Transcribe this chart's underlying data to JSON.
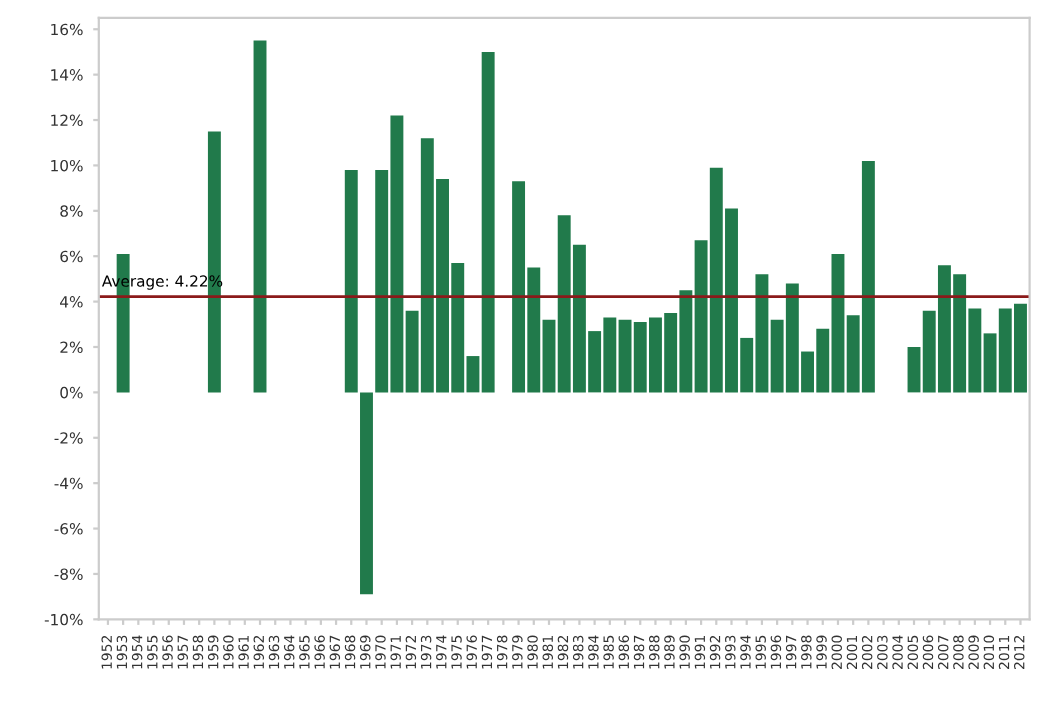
{
  "chart_data": {
    "type": "bar",
    "categories": [
      "1952",
      "1953",
      "1954",
      "1955",
      "1956",
      "1957",
      "1958",
      "1959",
      "1960",
      "1961",
      "1962",
      "1963",
      "1964",
      "1965",
      "1966",
      "1967",
      "1968",
      "1969",
      "1970",
      "1971",
      "1972",
      "1973",
      "1974",
      "1975",
      "1976",
      "1977",
      "1978",
      "1979",
      "1980",
      "1981",
      "1982",
      "1983",
      "1984",
      "1985",
      "1986",
      "1987",
      "1988",
      "1989",
      "1990",
      "1991",
      "1992",
      "1993",
      "1994",
      "1995",
      "1996",
      "1997",
      "1998",
      "1999",
      "2000",
      "2001",
      "2002",
      "2003",
      "2004",
      "2005",
      "2006",
      "2007",
      "2008",
      "2009",
      "2010",
      "2011",
      "2012"
    ],
    "values": [
      0,
      6.1,
      0,
      0,
      0,
      0,
      0,
      11.5,
      0,
      0,
      15.5,
      0,
      0,
      0,
      0,
      0,
      9.8,
      -8.9,
      9.8,
      12.2,
      3.6,
      11.2,
      9.4,
      5.7,
      1.6,
      15.0,
      0,
      9.3,
      5.5,
      3.2,
      7.8,
      6.5,
      2.7,
      3.3,
      3.2,
      3.1,
      3.3,
      3.5,
      4.5,
      6.7,
      9.9,
      8.1,
      2.4,
      5.2,
      3.2,
      4.8,
      1.8,
      2.8,
      6.1,
      3.4,
      10.2,
      0,
      0,
      2.0,
      3.6,
      5.6,
      5.2,
      3.7,
      2.6,
      3.7,
      3.9
    ],
    "color": "#217a4b",
    "ylim": [
      -10,
      16.5
    ],
    "yticks": [
      {
        "value": -10,
        "label": "-10%"
      },
      {
        "value": -8,
        "label": "-8%"
      },
      {
        "value": -6,
        "label": "-6%"
      },
      {
        "value": -4,
        "label": "-4%"
      },
      {
        "value": -2,
        "label": "-2%"
      },
      {
        "value": 0,
        "label": "0%"
      },
      {
        "value": 2,
        "label": "2%"
      },
      {
        "value": 4,
        "label": "4%"
      },
      {
        "value": 6,
        "label": "6%"
      },
      {
        "value": 8,
        "label": "8%"
      },
      {
        "value": 10,
        "label": "10%"
      },
      {
        "value": 12,
        "label": "12%"
      },
      {
        "value": 14,
        "label": "14%"
      },
      {
        "value": 16,
        "label": "16%"
      }
    ],
    "ref_lines": [
      {
        "axis": "y",
        "value": 4.22,
        "label": "Average: 4.22%",
        "color": "#8b1a1a"
      }
    ],
    "grid": false
  }
}
